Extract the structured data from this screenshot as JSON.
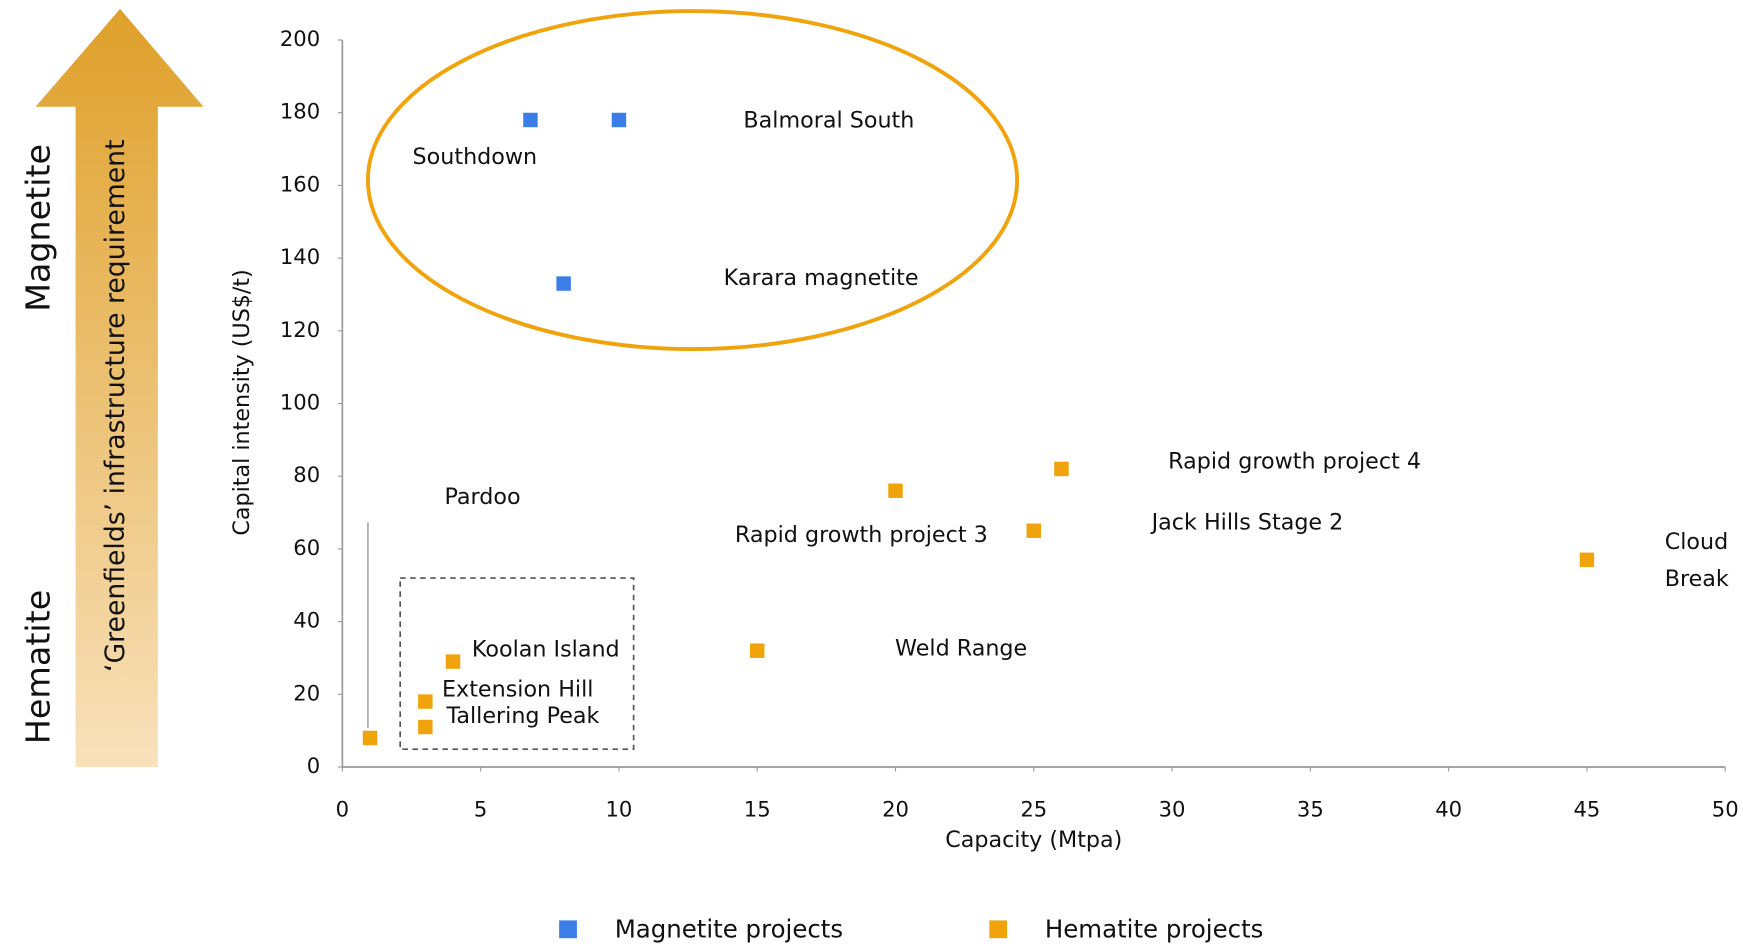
{
  "chart_data": {
    "type": "scatter",
    "x_label": "Capacity (Mtpa)",
    "y_label": "Capital intensity (US$/t)",
    "xlim": [
      0,
      50
    ],
    "xticks": [
      0,
      5,
      10,
      15,
      20,
      25,
      30,
      35,
      40,
      45,
      50
    ],
    "ylim": [
      0,
      200
    ],
    "yticks": [
      0,
      20,
      40,
      60,
      80,
      100,
      120,
      140,
      160,
      180,
      200
    ],
    "grid": false,
    "legend": "bottom",
    "annotations": {
      "arrow": "‘Greenfields’ infrastructure requirement",
      "top": "Magnetite",
      "bottom": "Hematite"
    },
    "series": [
      {
        "name": "Magnetite projects",
        "color": "#3b7ee8",
        "x": [
          6.8,
          10,
          8
        ],
        "values": [
          178,
          178,
          133
        ],
        "labels": [
          "Southdown",
          "Balmoral South",
          "Karara magnetite"
        ]
      },
      {
        "name": "Hematite projects",
        "color": "#f0a30a",
        "x": [
          1,
          4,
          3,
          3,
          15,
          20,
          25,
          26,
          45
        ],
        "values": [
          8,
          29,
          18,
          11,
          32,
          76,
          65,
          82,
          57
        ],
        "labels": [
          "Pardoo",
          "Koolan Island",
          "Extension Hill",
          "Tallering Peak",
          "Weld Range",
          "Rapid growth project 3",
          "Jack Hills Stage 2",
          "Rapid growth project 4",
          "Cloud\nBreak"
        ]
      }
    ]
  }
}
